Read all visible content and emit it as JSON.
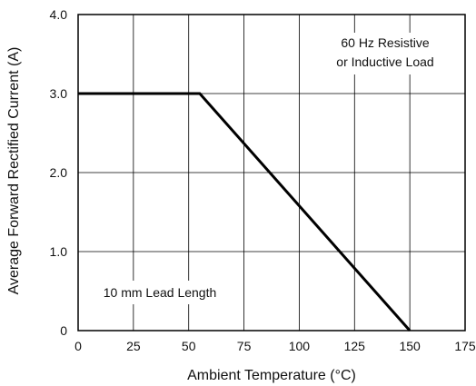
{
  "chart_data": {
    "type": "line",
    "title": "",
    "xlabel": "Ambient Temperature (°C)",
    "ylabel": "Average Forward Rectified Current (A)",
    "xlim": [
      0,
      175
    ],
    "ylim": [
      0,
      4.0
    ],
    "grid": true,
    "x_ticks": [
      0,
      25,
      50,
      75,
      100,
      125,
      150,
      175
    ],
    "x_tick_labels": [
      "0",
      "25",
      "50",
      "75",
      "100",
      "125",
      "150",
      "175"
    ],
    "y_ticks": [
      0,
      1,
      2,
      3,
      4
    ],
    "y_tick_labels": [
      "0",
      "1.0",
      "2.0",
      "3.0",
      "4.0"
    ],
    "series": [
      {
        "points": [
          [
            0,
            3.0
          ],
          [
            55,
            3.0
          ],
          [
            150,
            0
          ]
        ],
        "color": "#000000"
      }
    ],
    "annotations": [
      {
        "lines": [
          "60 Hz Resistive",
          "or Inductive Load"
        ]
      },
      {
        "lines": [
          "10 mm Lead Length"
        ]
      }
    ]
  }
}
